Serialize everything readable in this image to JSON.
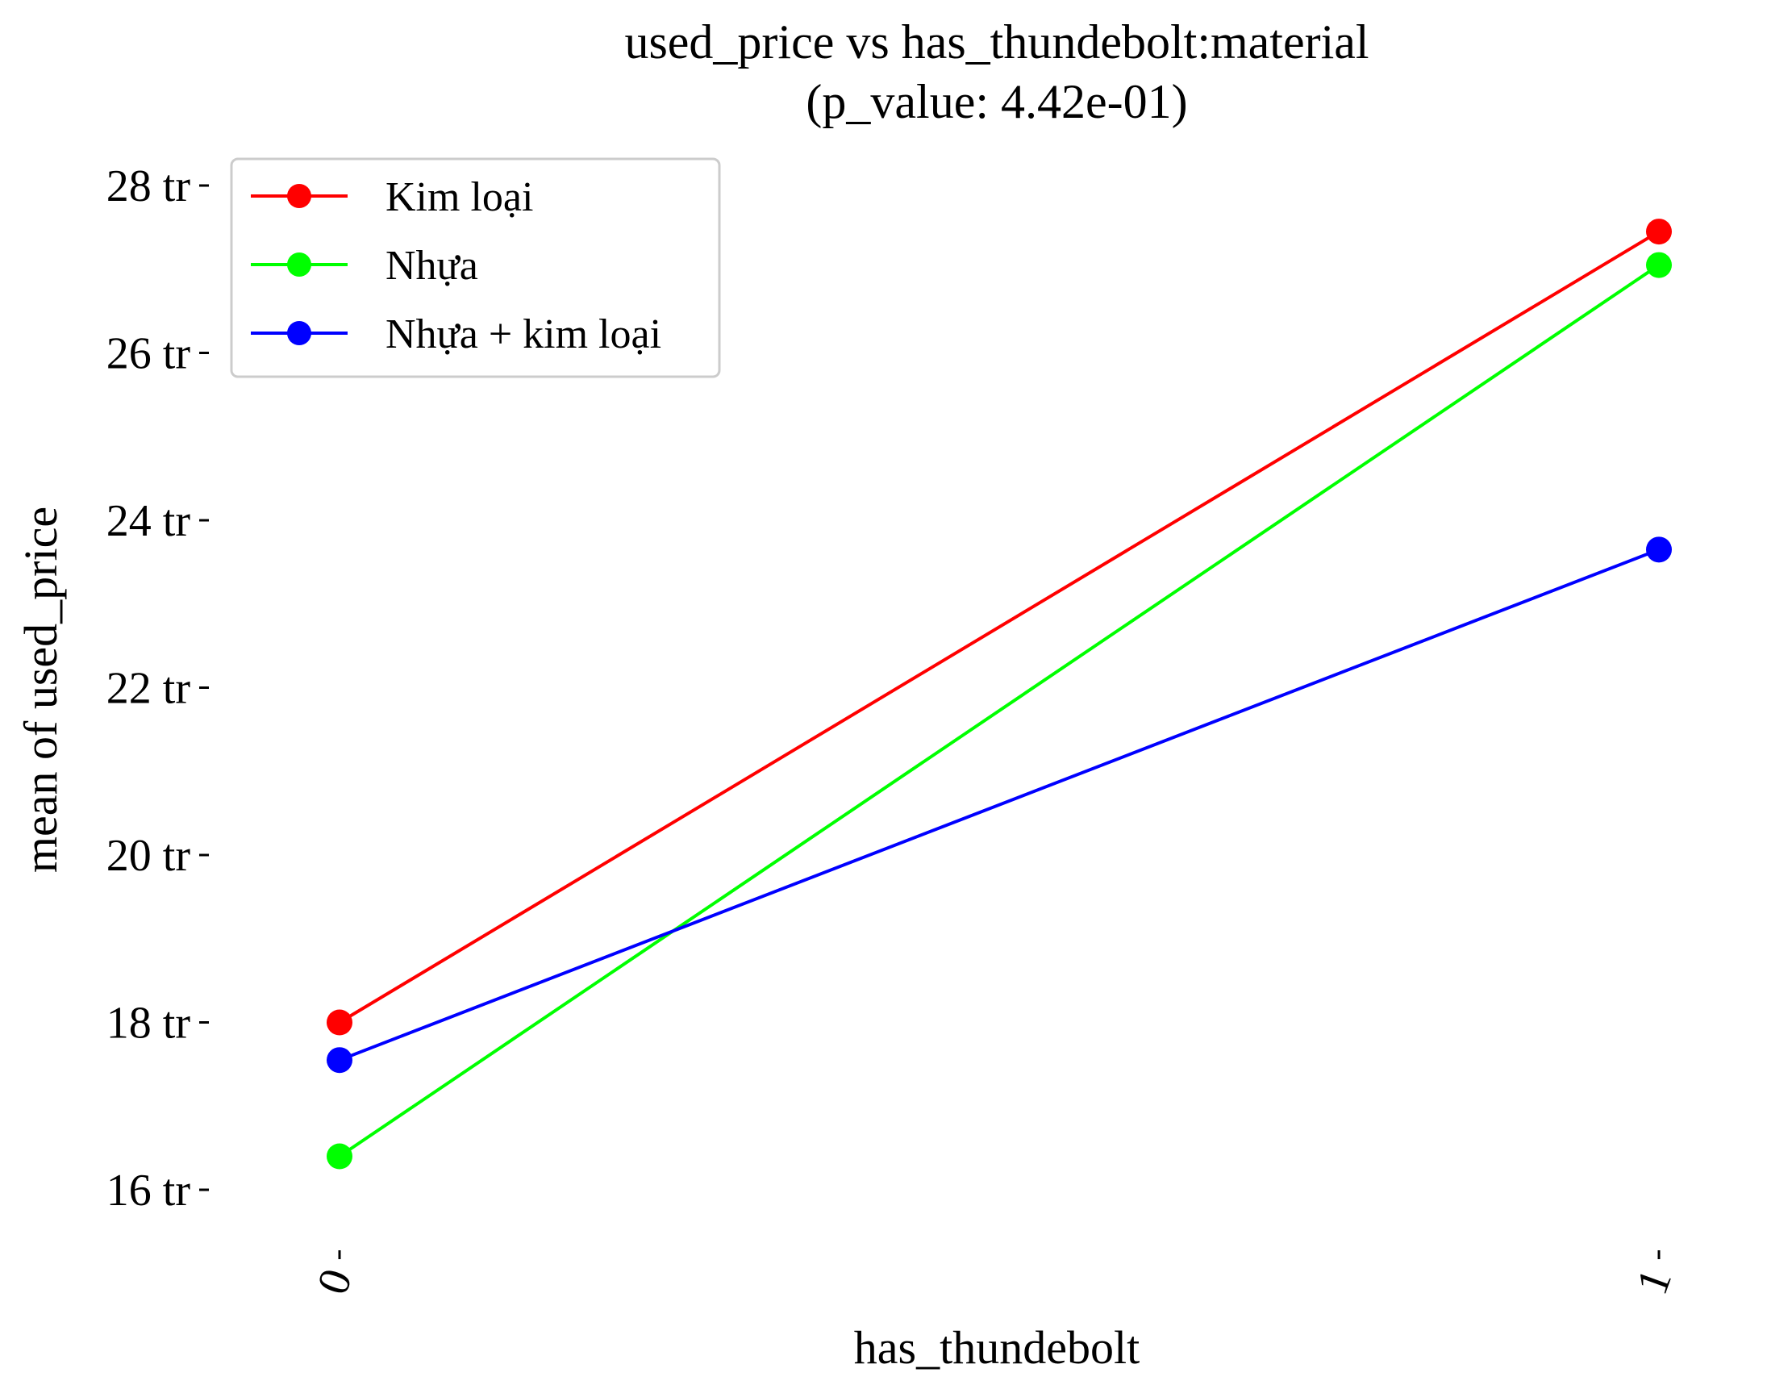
{
  "chart_data": {
    "type": "line",
    "title": "used_price vs has_thundebolt:material",
    "subtitle": "(p_value: 4.42e-01)",
    "xlabel": "has_thundebolt",
    "ylabel": "mean of used_price",
    "categories": [
      "0",
      "1"
    ],
    "y_ticks": [
      16,
      18,
      20,
      22,
      24,
      26,
      28
    ],
    "y_tick_labels": [
      "16 tr",
      "18 tr",
      "20 tr",
      "22 tr",
      "24 tr",
      "26 tr",
      "28 tr"
    ],
    "ylim": [
      15.0,
      28.4
    ],
    "grid": false,
    "legend_position": "top-left",
    "series": [
      {
        "name": "Kim loại",
        "color": "#ff0000",
        "values": [
          18.0,
          27.45
        ]
      },
      {
        "name": "Nhựa",
        "color": "#00ff00",
        "values": [
          16.4,
          27.05
        ]
      },
      {
        "name": "Nhựa + kim loại",
        "color": "#0000ff",
        "values": [
          17.55,
          23.65
        ]
      }
    ]
  }
}
